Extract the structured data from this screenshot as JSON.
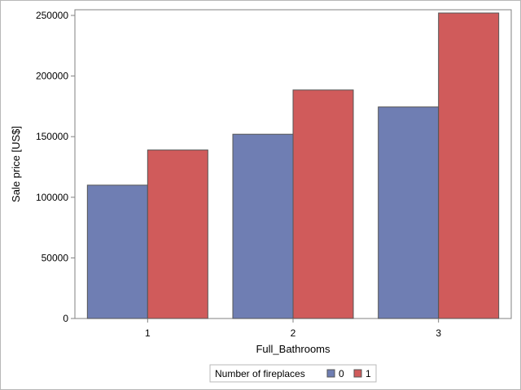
{
  "chart_data": {
    "type": "bar",
    "title": "",
    "xlabel": "Full_Bathrooms",
    "ylabel": "Sale price [US$]",
    "categories": [
      "1",
      "2",
      "3"
    ],
    "series": [
      {
        "name": "0",
        "values": [
          110000,
          152000,
          174500
        ],
        "color": "#6f7eb3"
      },
      {
        "name": "1",
        "values": [
          139000,
          188500,
          252000
        ],
        "color": "#d05b5b"
      }
    ],
    "ylim": [
      0,
      252000
    ],
    "yticks": [
      0,
      50000,
      100000,
      150000,
      200000,
      250000
    ],
    "legend": {
      "title": "Number of fireplaces",
      "placement": "bottom-center"
    },
    "grid": false,
    "colors": {
      "bar_border": "#555555",
      "axis": "#808080",
      "frame": "#b8b8b8"
    }
  }
}
